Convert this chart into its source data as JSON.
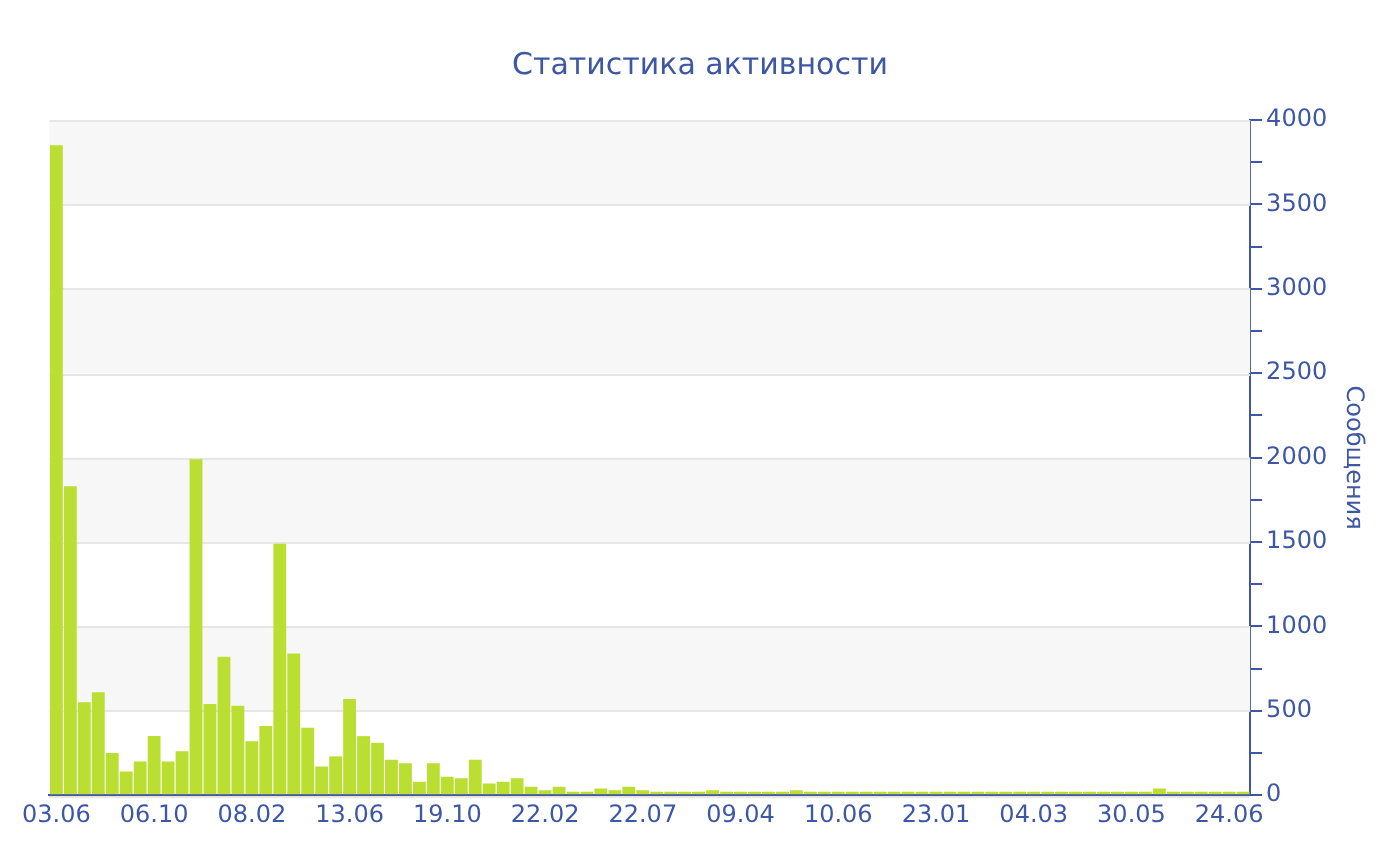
{
  "chart_data": {
    "type": "bar",
    "title": "Статистика активности",
    "ylabel": "Сообщения",
    "categories": [
      "03.06",
      null,
      null,
      null,
      null,
      null,
      null,
      "06.10",
      null,
      null,
      null,
      null,
      null,
      null,
      "08.02",
      null,
      null,
      null,
      null,
      null,
      null,
      "13.06",
      null,
      null,
      null,
      null,
      null,
      null,
      "19.10",
      null,
      null,
      null,
      null,
      null,
      null,
      "22.02",
      null,
      null,
      null,
      null,
      null,
      null,
      "22.07",
      null,
      null,
      null,
      null,
      null,
      null,
      "09.04",
      null,
      null,
      null,
      null,
      null,
      null,
      "10.06",
      null,
      null,
      null,
      null,
      null,
      null,
      "23.01",
      null,
      null,
      null,
      null,
      null,
      null,
      "04.03",
      null,
      null,
      null,
      null,
      null,
      null,
      "30.05",
      null,
      null,
      null,
      null,
      null,
      null,
      "24.06",
      null
    ],
    "values": [
      3850,
      1830,
      550,
      610,
      250,
      140,
      200,
      350,
      200,
      260,
      1990,
      540,
      820,
      530,
      320,
      410,
      1490,
      840,
      400,
      170,
      230,
      570,
      350,
      310,
      210,
      190,
      80,
      190,
      110,
      100,
      210,
      70,
      80,
      100,
      50,
      30,
      50,
      20,
      20,
      40,
      30,
      50,
      30,
      20,
      20,
      20,
      20,
      30,
      20,
      20,
      20,
      20,
      20,
      30,
      20,
      20,
      20,
      20,
      20,
      20,
      20,
      20,
      20,
      20,
      20,
      20,
      20,
      20,
      20,
      20,
      20,
      20,
      20,
      20,
      20,
      20,
      20,
      20,
      20,
      40,
      20,
      20,
      20,
      20,
      20,
      20
    ],
    "color": "#bade32",
    "ylim": [
      0,
      4000
    ],
    "yticks": [
      0,
      {
        "value": 250,
        "label": null
      },
      500,
      {
        "value": 750,
        "label": null
      },
      1000,
      {
        "value": 1250,
        "label": null
      },
      1500,
      {
        "value": 1750,
        "label": null
      },
      2000,
      {
        "value": 2250,
        "label": null
      },
      2500,
      {
        "value": 2750,
        "label": null
      },
      3000,
      {
        "value": 3250,
        "label": null
      },
      3500,
      {
        "value": 3750,
        "label": null
      },
      4000
    ],
    "grid": true
  }
}
